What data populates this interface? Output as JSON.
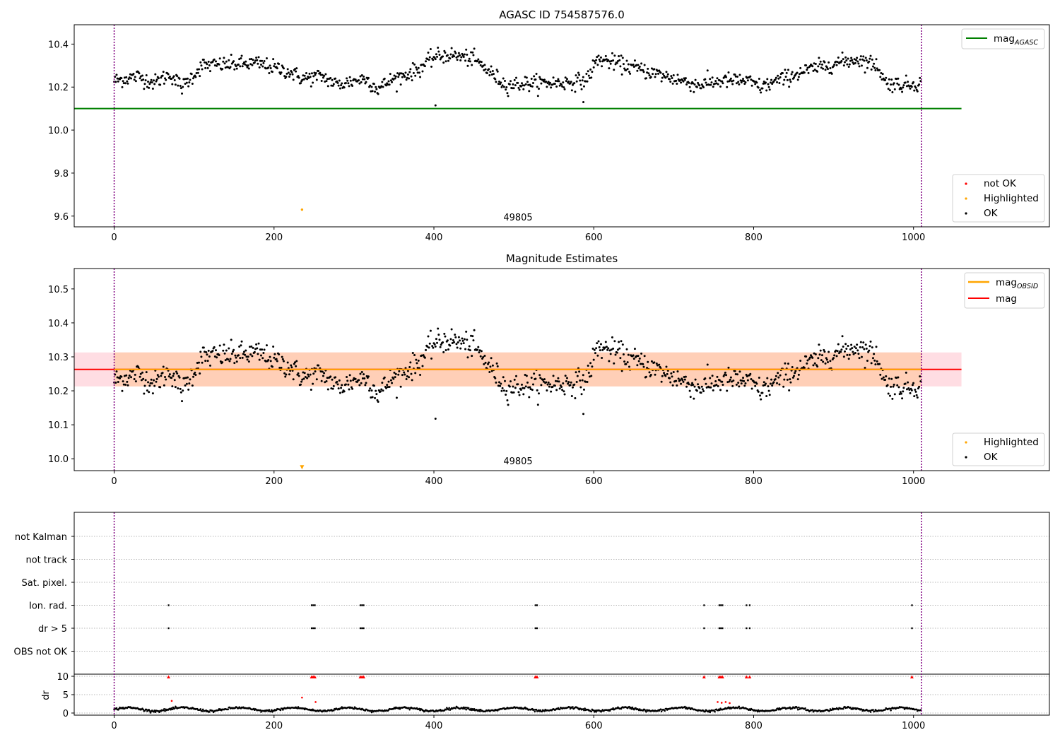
{
  "chart_data": [
    {
      "type": "scatter",
      "title": "AGASC ID 754587576.0",
      "xlim": [
        -50,
        1170
      ],
      "ylim": [
        9.55,
        10.49
      ],
      "xticks": [
        "0",
        "200",
        "400",
        "600",
        "800",
        "1000"
      ],
      "yticks": [
        "9.6",
        "9.8",
        "10.0",
        "10.2",
        "10.4"
      ],
      "vlines": [
        0,
        1010
      ],
      "hline": {
        "label": "mag",
        "sub": "AGASC",
        "value": 10.1,
        "x_end": 1060,
        "color": "#008000"
      },
      "annotation": "49805",
      "highlighted": [
        {
          "x": 235,
          "y": 9.63
        }
      ],
      "outliers": [
        {
          "x": 402,
          "y": 10.115
        },
        {
          "x": 587,
          "y": 10.13
        }
      ],
      "legend_upper": [
        "mag"
      ],
      "legend_lower": [
        {
          "label": "not OK",
          "color": "#ff0000"
        },
        {
          "label": "Highlighted",
          "color": "#ffa500"
        },
        {
          "label": "OK",
          "color": "#000000"
        }
      ]
    },
    {
      "type": "scatter",
      "title": "Magnitude Estimates",
      "xlim": [
        -50,
        1170
      ],
      "ylim": [
        9.965,
        10.56
      ],
      "xticks": [
        "0",
        "200",
        "400",
        "600",
        "800",
        "1000"
      ],
      "yticks": [
        "10.0",
        "10.1",
        "10.2",
        "10.3",
        "10.4",
        "10.5"
      ],
      "vlines": [
        0,
        1010
      ],
      "mean_mag": 10.263,
      "band": [
        10.213,
        10.313
      ],
      "band_x_end": 1060,
      "annotation": "49805",
      "highlighted": [
        {
          "x": 235,
          "y": 9.975
        }
      ],
      "outliers": [
        {
          "x": 402,
          "y": 10.118
        },
        {
          "x": 587,
          "y": 10.132
        }
      ],
      "legend_upper": [
        {
          "label": "mag",
          "sub": "OBSID",
          "color": "#ffa500"
        },
        {
          "label": "mag",
          "sub": "",
          "color": "#ff0000"
        }
      ],
      "legend_lower": [
        {
          "label": "Highlighted",
          "color": "#ffa500"
        },
        {
          "label": "OK",
          "color": "#000000"
        }
      ]
    },
    {
      "type": "scatter",
      "xlim": [
        -50,
        1170
      ],
      "xticks": [
        "0",
        "200",
        "400",
        "600",
        "800",
        "1000"
      ],
      "flag_rows": [
        "not Kalman",
        "not track",
        "Sat. pixel.",
        "Ion. rad.",
        "dr > 5",
        "OBS not OK"
      ],
      "flag_positions": {
        "Ion. rad.": [
          68,
          247,
          249,
          251,
          308,
          310,
          312,
          527,
          529,
          738,
          757,
          759,
          761,
          791,
          795,
          998
        ],
        "dr > 5": [
          68,
          247,
          249,
          251,
          308,
          310,
          312,
          527,
          529,
          738,
          757,
          759,
          761,
          791,
          795,
          998
        ]
      },
      "dr_ylabel": "dr",
      "dr_yticks": [
        "0",
        "5",
        "10"
      ],
      "dr_clipped": [
        68,
        247,
        249,
        251,
        308,
        310,
        312,
        527,
        529,
        738,
        757,
        759,
        761,
        791,
        795,
        998
      ],
      "dr_red_points": [
        {
          "x": 72,
          "y": 3.3
        },
        {
          "x": 235,
          "y": 4.2
        },
        {
          "x": 252,
          "y": 3.0
        },
        {
          "x": 755,
          "y": 3.0
        },
        {
          "x": 760,
          "y": 2.8
        },
        {
          "x": 765,
          "y": 3.0
        },
        {
          "x": 770,
          "y": 2.7
        }
      ]
    }
  ]
}
